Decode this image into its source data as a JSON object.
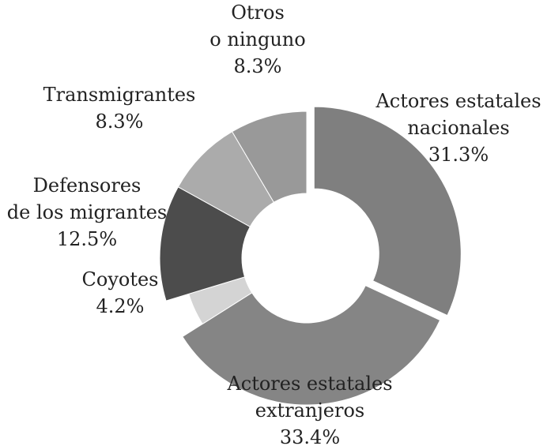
{
  "chart_data": {
    "type": "pie",
    "title": "",
    "slices": [
      {
        "name": "Actores estatales nacionales",
        "lines": [
          "Actores estatales",
          "nacionales"
        ],
        "value": 31.3,
        "pct": "31.3%",
        "color": "#7f7f7f"
      },
      {
        "name": "Actores estatales extranjeros",
        "lines": [
          "Actores estatales",
          "extranjeros"
        ],
        "value": 33.4,
        "pct": "33.4%",
        "color": "#858585"
      },
      {
        "name": "Coyotes",
        "lines": [
          "Coyotes"
        ],
        "value": 4.2,
        "pct": "4.2%",
        "color": "#d4d4d4"
      },
      {
        "name": "Defensores de los migrantes",
        "lines": [
          "Defensores",
          "de los migrantes"
        ],
        "value": 12.5,
        "pct": "12.5%",
        "color": "#4c4c4c"
      },
      {
        "name": "Transmigrantes",
        "lines": [
          "Transmigrantes"
        ],
        "value": 8.3,
        "pct": "8.3%",
        "color": "#ababab"
      },
      {
        "name": "Otros o ninguno",
        "lines": [
          "Otros",
          "o ninguno"
        ],
        "value": 8.3,
        "pct": "8.3%",
        "color": "#999999"
      }
    ]
  }
}
